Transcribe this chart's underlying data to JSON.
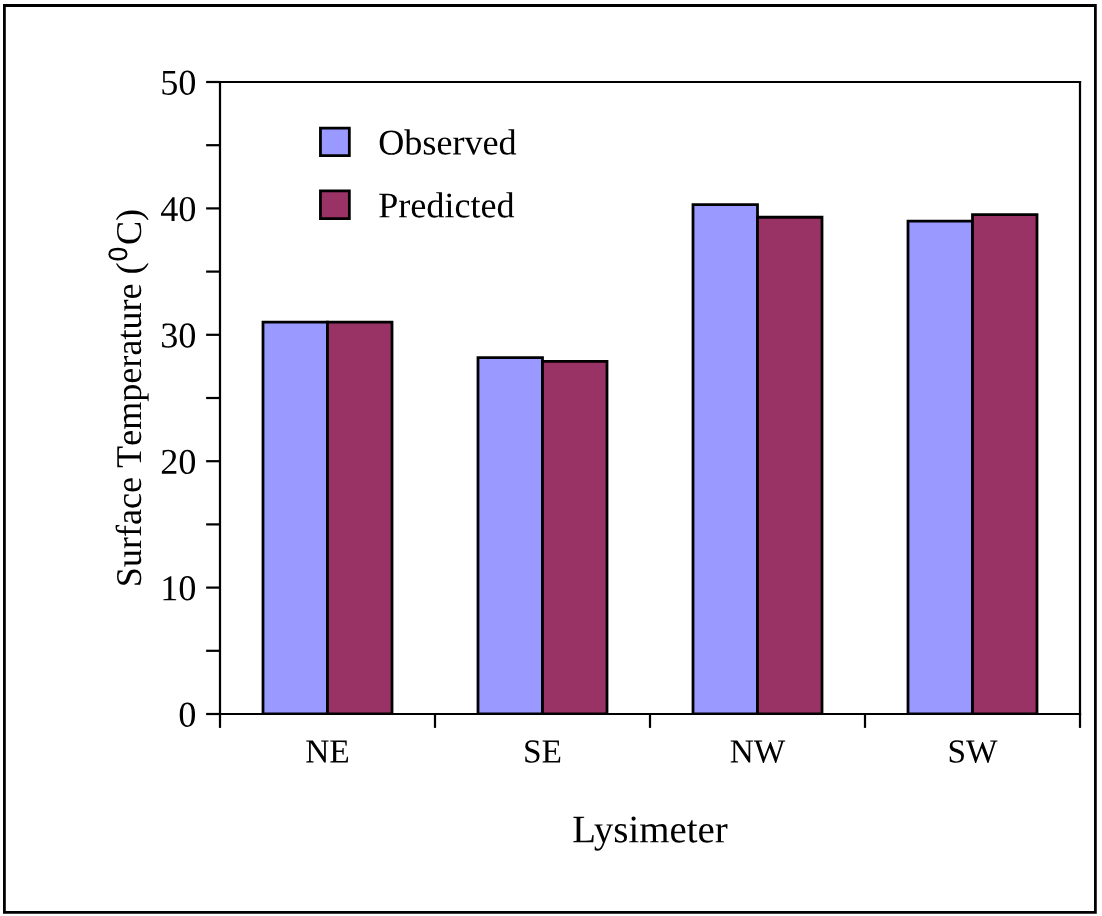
{
  "chart_data": {
    "type": "bar",
    "xlabel": "Lysimeter",
    "ylabel": "Surface Temperature ($^{0}$C)",
    "categories": [
      "NE",
      "SE",
      "NW",
      "SW"
    ],
    "series": [
      {
        "name": "Observed",
        "color": "#9999ff",
        "values": [
          31.0,
          28.2,
          40.3,
          39.0
        ]
      },
      {
        "name": "Predicted",
        "color": "#993366",
        "values": [
          31.0,
          27.9,
          39.3,
          39.5
        ]
      }
    ],
    "ylim": [
      0,
      50
    ],
    "yticks": [
      0,
      {
        "value": 5,
        "label": null
      },
      10,
      {
        "value": 15,
        "label": null
      },
      20,
      {
        "value": 25,
        "label": null
      },
      30,
      {
        "value": 35,
        "label": null
      },
      40,
      {
        "value": 45,
        "label": null
      },
      50
    ],
    "grid": false,
    "legend": "top left"
  }
}
